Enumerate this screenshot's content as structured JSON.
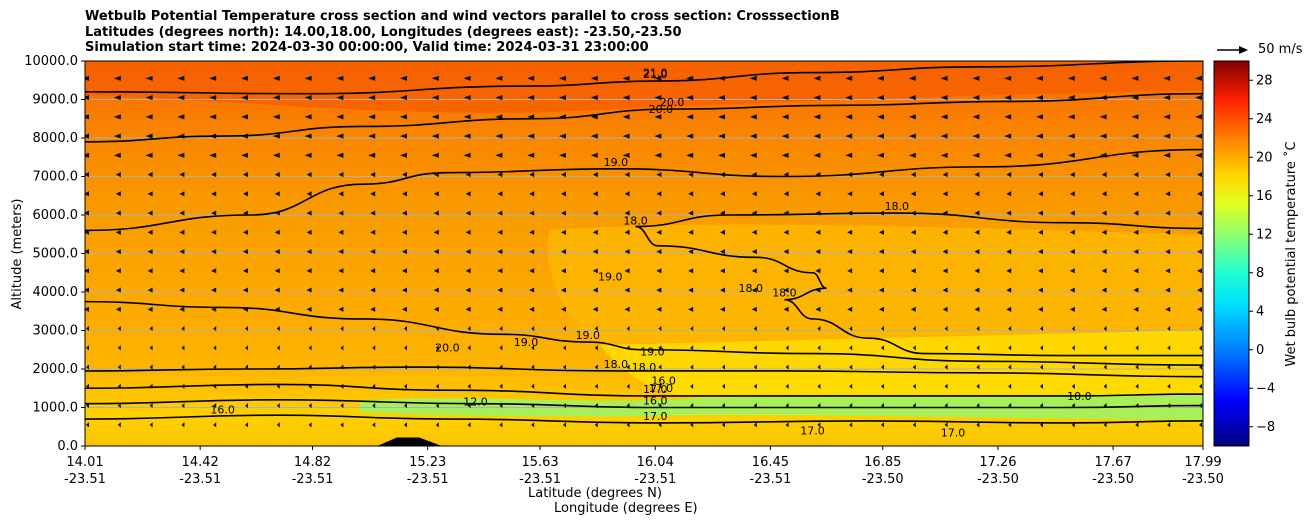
{
  "title": {
    "line1": "Wetbulb Potential Temperature cross section and wind vectors parallel to cross section: CrosssectionB",
    "line2": "Latitudes (degrees north): 14.00,18.00, Longitudes (degrees east): -23.50,-23.50",
    "line3": "Simulation start time: 2024-03-30 00:00:00, Valid time: 2024-03-31 23:00:00"
  },
  "quiver_key": {
    "label": "50 m/s"
  },
  "chart_data": {
    "type": "heatmap",
    "subtype": "cross-section contour with wind vectors",
    "xlabel_lat": "Latitude (degrees N)",
    "xlabel_lon": "Longitude (degrees E)",
    "ylabel": "Altitude (meters)",
    "ylim": [
      0,
      10000
    ],
    "xlim": [
      14.01,
      17.99
    ],
    "x_ticks": [
      {
        "lat": "14.01",
        "lon": "-23.51"
      },
      {
        "lat": "14.42",
        "lon": "-23.51"
      },
      {
        "lat": "14.82",
        "lon": "-23.51"
      },
      {
        "lat": "15.23",
        "lon": "-23.51"
      },
      {
        "lat": "15.63",
        "lon": "-23.51"
      },
      {
        "lat": "16.04",
        "lon": "-23.51"
      },
      {
        "lat": "16.45",
        "lon": "-23.51"
      },
      {
        "lat": "16.85",
        "lon": "-23.50"
      },
      {
        "lat": "17.26",
        "lon": "-23.50"
      },
      {
        "lat": "17.67",
        "lon": "-23.50"
      },
      {
        "lat": "17.99",
        "lon": "-23.50"
      }
    ],
    "y_ticks": [
      "0.0",
      "1000.0",
      "2000.0",
      "3000.0",
      "4000.0",
      "5000.0",
      "6000.0",
      "7000.0",
      "8000.0",
      "9000.0",
      "10000.0"
    ],
    "colorbar": {
      "label": "Wet bulb potential temperature ˚C",
      "range": [
        -10,
        30
      ],
      "ticks": [
        "-8",
        "-4",
        "0",
        "4",
        "8",
        "12",
        "16",
        "20",
        "24",
        "28"
      ]
    },
    "contours": [
      {
        "label": "21.0",
        "points": [
          [
            14.01,
            9200
          ],
          [
            14.8,
            9150
          ],
          [
            15.6,
            9350
          ],
          [
            16.04,
            9480
          ],
          [
            16.6,
            9700
          ],
          [
            17.2,
            9850
          ],
          [
            17.99,
            10000
          ]
        ]
      },
      {
        "label": "20.0",
        "points": [
          [
            14.01,
            7900
          ],
          [
            14.5,
            8050
          ],
          [
            15.0,
            8300
          ],
          [
            15.6,
            8500
          ],
          [
            16.1,
            8750
          ],
          [
            16.7,
            8850
          ],
          [
            17.3,
            8950
          ],
          [
            17.99,
            9150
          ]
        ]
      },
      {
        "label": "19.0",
        "points": [
          [
            14.01,
            5600
          ],
          [
            14.6,
            6000
          ],
          [
            15.0,
            6800
          ],
          [
            15.3,
            7100
          ],
          [
            15.9,
            7200
          ],
          [
            16.5,
            7000
          ],
          [
            17.2,
            7250
          ],
          [
            17.99,
            7700
          ]
        ]
      },
      {
        "label": "18.0",
        "points": [
          [
            15.97,
            5700
          ],
          [
            16.3,
            6000
          ],
          [
            16.9,
            6050
          ],
          [
            17.5,
            5800
          ],
          [
            17.99,
            5650
          ]
        ]
      },
      {
        "label": "18.0",
        "points": [
          [
            15.97,
            5700
          ],
          [
            16.05,
            5200
          ],
          [
            16.4,
            4900
          ],
          [
            16.6,
            4500
          ],
          [
            16.65,
            4100
          ],
          [
            16.5,
            3800
          ],
          [
            16.6,
            3300
          ],
          [
            16.8,
            2800
          ],
          [
            17.0,
            2400
          ],
          [
            17.5,
            2350
          ],
          [
            17.99,
            2350
          ]
        ]
      },
      {
        "label": "19.0",
        "points": [
          [
            14.01,
            3750
          ],
          [
            14.5,
            3600
          ],
          [
            15.0,
            3300
          ],
          [
            15.5,
            2900
          ],
          [
            15.8,
            2700
          ],
          [
            16.0,
            2500
          ],
          [
            16.6,
            2400
          ],
          [
            17.2,
            2200
          ],
          [
            17.99,
            2100
          ]
        ]
      },
      {
        "label": "18.0",
        "points": [
          [
            14.01,
            1950
          ],
          [
            14.6,
            2000
          ],
          [
            15.2,
            2050
          ],
          [
            15.9,
            1950
          ],
          [
            16.5,
            1950
          ],
          [
            17.2,
            1900
          ],
          [
            17.99,
            1800
          ]
        ]
      },
      {
        "label": "17.0",
        "points": [
          [
            14.01,
            1500
          ],
          [
            14.7,
            1600
          ],
          [
            15.3,
            1450
          ],
          [
            16.04,
            1300
          ],
          [
            16.8,
            1300
          ],
          [
            17.5,
            1300
          ],
          [
            17.99,
            1350
          ]
        ]
      },
      {
        "label": "16.0",
        "points": [
          [
            14.01,
            1100
          ],
          [
            14.7,
            1200
          ],
          [
            15.4,
            1100
          ],
          [
            16.04,
            1000
          ],
          [
            16.8,
            1000
          ],
          [
            17.5,
            1000
          ],
          [
            17.99,
            1050
          ]
        ]
      },
      {
        "label": "17.0",
        "points": [
          [
            14.01,
            700
          ],
          [
            14.7,
            800
          ],
          [
            15.3,
            700
          ],
          [
            16.04,
            600
          ],
          [
            16.8,
            650
          ],
          [
            17.5,
            600
          ],
          [
            17.99,
            650
          ]
        ]
      }
    ],
    "annotations": [
      "21.0",
      "20.0",
      "18.0",
      "19.0",
      "18.0",
      "20.0",
      "19.0",
      "19.0",
      "18.0",
      "16.0",
      "17.0",
      "16.0",
      "10.0",
      "12.0",
      "17.0",
      "17.0"
    ],
    "terrain": {
      "x": [
        15.05,
        15.12,
        15.2,
        15.28
      ],
      "y": [
        0,
        220,
        220,
        0
      ]
    }
  }
}
